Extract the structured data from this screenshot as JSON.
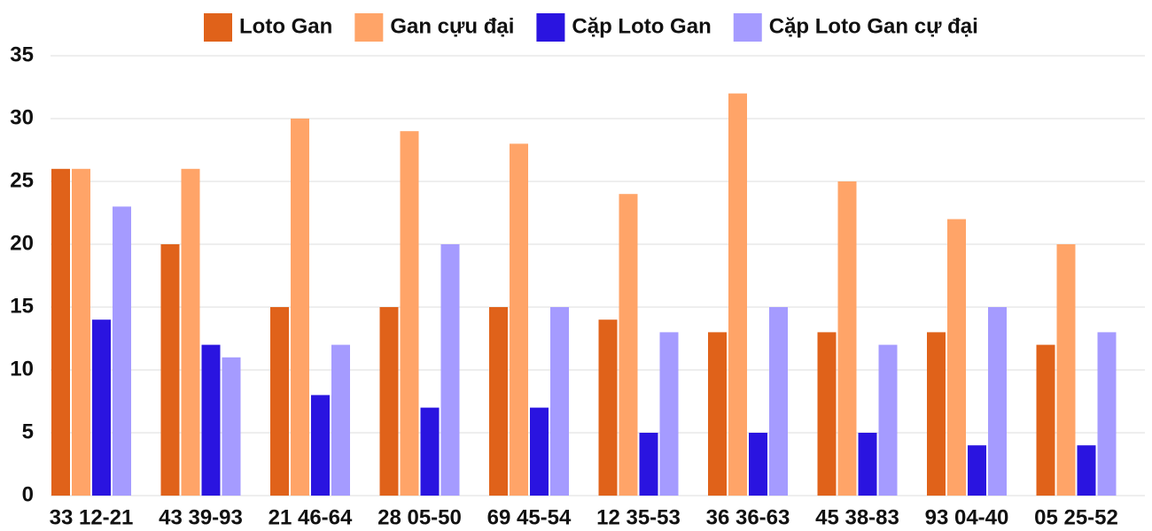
{
  "chart_data": {
    "type": "bar",
    "categories": [
      "33 12-21",
      "43 39-93",
      "21 46-64",
      "28 05-50",
      "69 45-54",
      "12 35-53",
      "36 36-63",
      "45 38-83",
      "93 04-40",
      "05 25-52"
    ],
    "series": [
      {
        "name": "Loto Gan",
        "color": "#e0621a",
        "values": [
          26,
          20,
          15,
          15,
          15,
          14,
          13,
          13,
          13,
          12
        ]
      },
      {
        "name": "Gan cựu đại",
        "color": "#ffa468",
        "values": [
          26,
          26,
          30,
          29,
          28,
          24,
          32,
          25,
          22,
          20
        ]
      },
      {
        "name": "Cặp Loto Gan",
        "color": "#2a14e0",
        "values": [
          14,
          12,
          8,
          7,
          7,
          5,
          5,
          5,
          4,
          4
        ]
      },
      {
        "name": "Cặp Loto Gan cự đại",
        "color": "#a59bff",
        "values": [
          23,
          11,
          12,
          20,
          15,
          13,
          15,
          12,
          15,
          13
        ]
      }
    ],
    "ylim": [
      0,
      35
    ],
    "yticks": [
      0,
      5,
      10,
      15,
      20,
      25,
      30,
      35
    ],
    "grid": true,
    "legend": "top"
  }
}
